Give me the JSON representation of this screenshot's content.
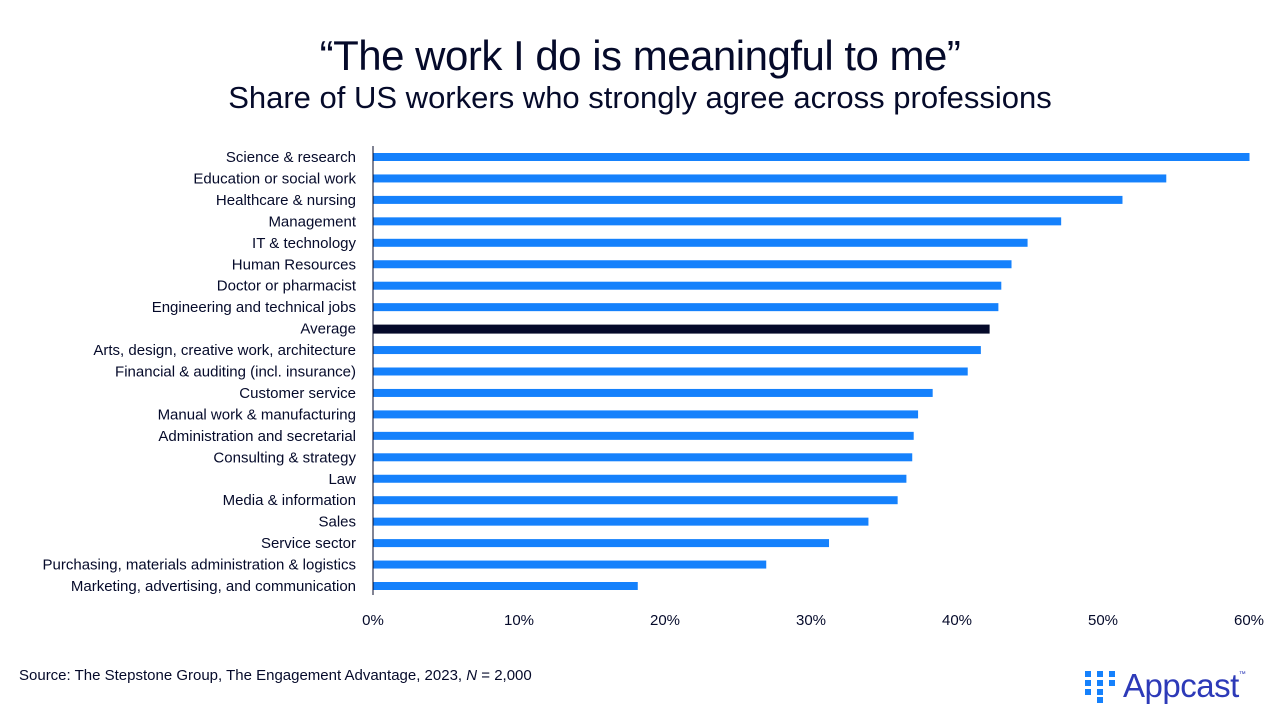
{
  "chart_data": {
    "type": "bar",
    "orientation": "horizontal",
    "title": "“The work I do is meaningful to me”",
    "subtitle": "Share of US workers who strongly agree across professions",
    "categories": [
      "Science & research",
      "Education or social work",
      "Healthcare & nursing",
      "Management",
      "IT & technology",
      "Human Resources",
      "Doctor or pharmacist",
      "Engineering and technical jobs",
      "Average",
      "Arts, design, creative work, architecture",
      "Financial & auditing (incl. insurance)",
      "Customer service",
      "Manual work & manufacturing",
      "Administration and secretarial",
      "Consulting & strategy",
      "Law",
      "Media & information",
      "Sales",
      "Service sector",
      "Purchasing, materials administration & logistics",
      "Marketing, advertising, and communication"
    ],
    "values": [
      60.0,
      54.3,
      51.3,
      47.1,
      44.8,
      43.7,
      43.0,
      42.8,
      42.2,
      41.6,
      40.7,
      38.3,
      37.3,
      37.0,
      36.9,
      36.5,
      35.9,
      33.9,
      31.2,
      26.9,
      18.1
    ],
    "highlight": "Average",
    "xlim": [
      0,
      60
    ],
    "xticks": [
      "0%",
      "10%",
      "20%",
      "30%",
      "40%",
      "50%",
      "60%"
    ],
    "xlabel": "",
    "ylabel": "",
    "grid": false,
    "colors": {
      "bar": "#1581fc",
      "highlight": "#050a2a"
    }
  },
  "footer": {
    "source": "Source: The Stepstone Group, The Engagement Advantage, 2023, N = 2,000",
    "logo": "Appcast",
    "logo_tm": "™"
  }
}
